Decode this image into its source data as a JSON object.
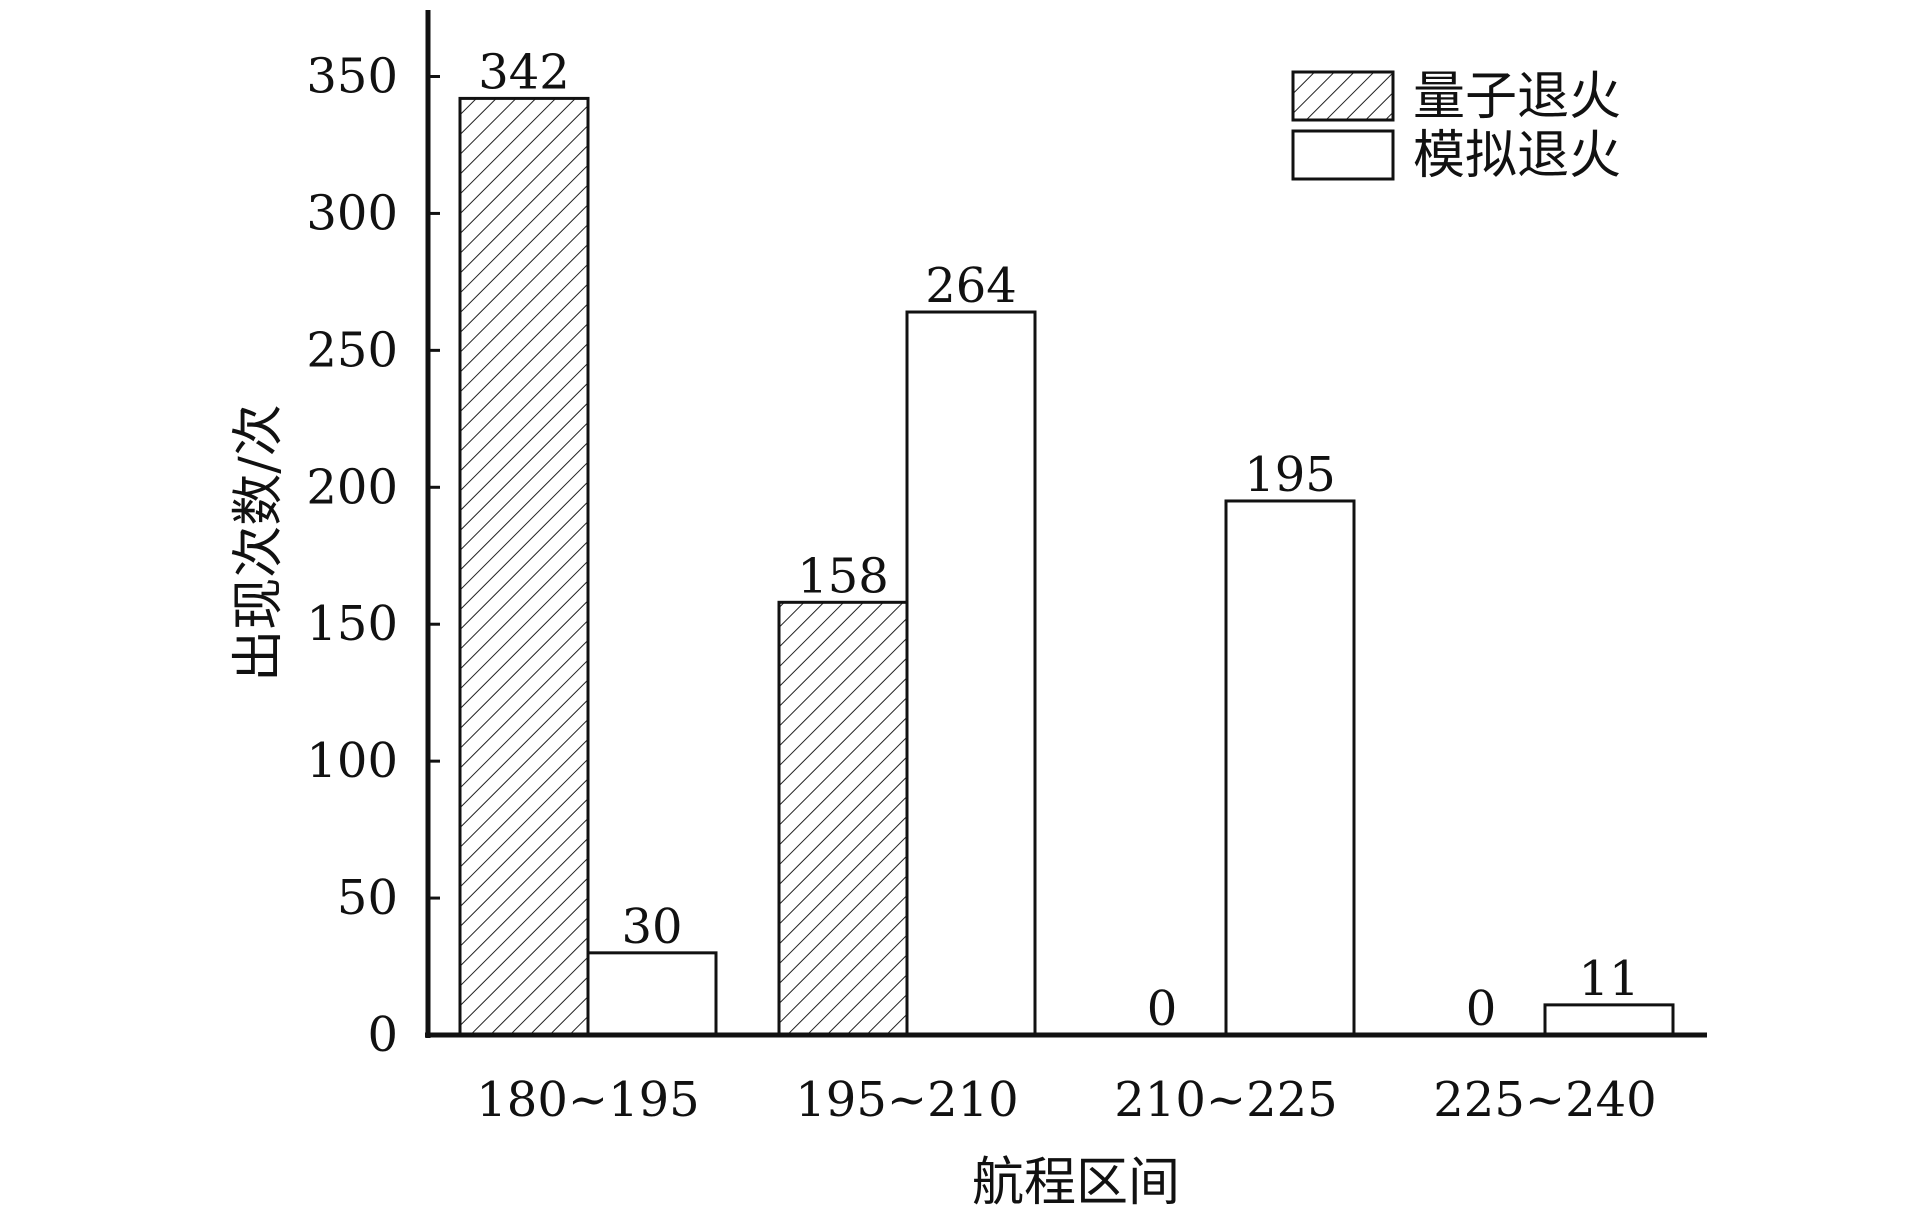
{
  "chart_data": {
    "type": "bar",
    "title": "",
    "xlabel": "航程区间",
    "ylabel": "出现次数/次",
    "categories": [
      "180~195",
      "195~210",
      "210~225",
      "225~240"
    ],
    "series": [
      {
        "name": "量子退火",
        "values": [
          342,
          158,
          0,
          0
        ],
        "fill": "hatched"
      },
      {
        "name": "模拟退火",
        "values": [
          30,
          264,
          195,
          11
        ],
        "fill": "white"
      }
    ],
    "ylim": [
      0,
      370
    ],
    "yticks": [
      0,
      50,
      100,
      150,
      200,
      250,
      300,
      350
    ],
    "data_labels": true,
    "grid": false,
    "legend": "top-right",
    "colors": {
      "stroke": "#111111",
      "background": "#ffffff"
    }
  }
}
